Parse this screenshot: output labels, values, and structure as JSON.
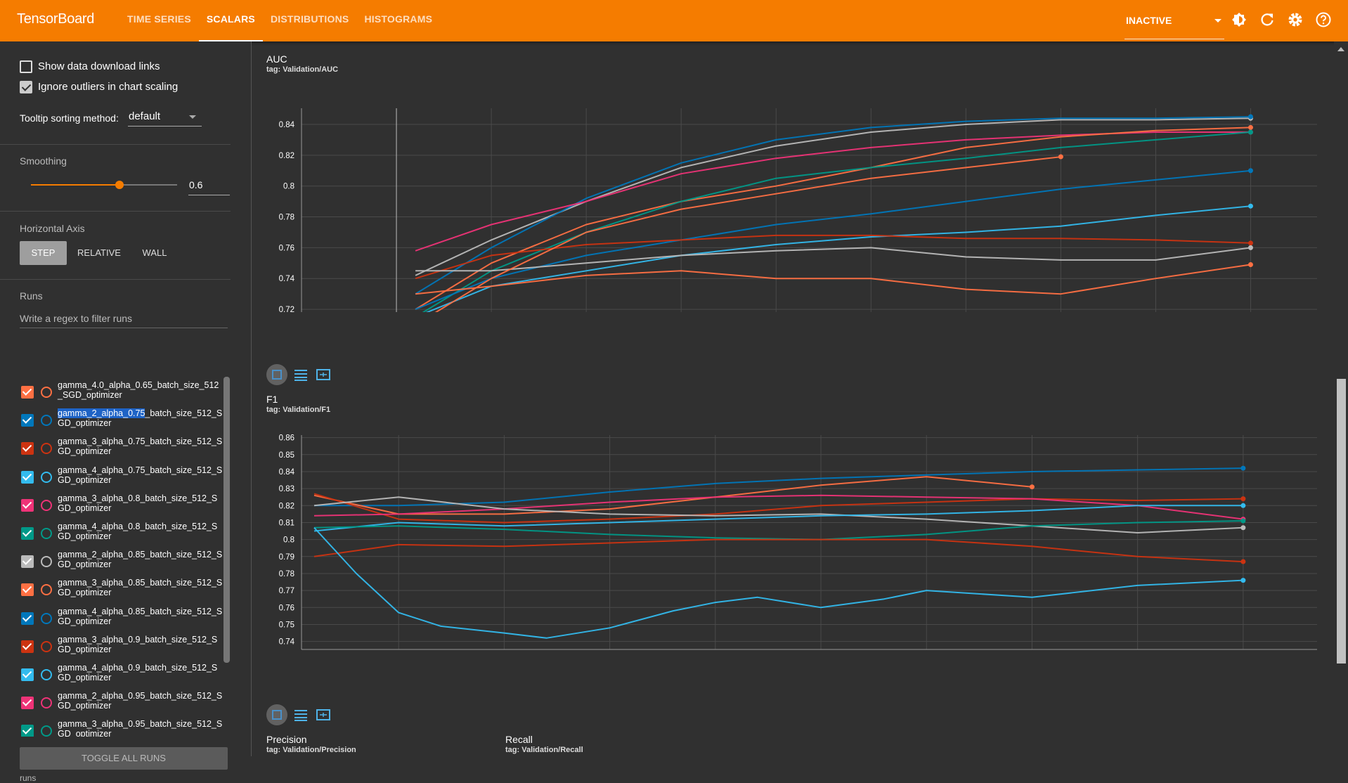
{
  "header": {
    "brand": "TensorBoard",
    "tabs": [
      "TIME SERIES",
      "SCALARS",
      "DISTRIBUTIONS",
      "HISTOGRAMS"
    ],
    "active_tab": "SCALARS",
    "status": "INACTIVE",
    "icons": [
      "brightness-icon",
      "refresh-icon",
      "settings-icon",
      "help-icon"
    ],
    "accent_color": "#f57c00"
  },
  "sidebar": {
    "show_links_label": "Show data download links",
    "show_links_checked": false,
    "ignore_outliers_label": "Ignore outliers in chart scaling",
    "ignore_outliers_checked": true,
    "tooltip_label": "Tooltip sorting method:",
    "tooltip_value": "default",
    "smoothing_label": "Smoothing",
    "smoothing_value": "0.6",
    "horizontal_axis_label": "Horizontal Axis",
    "axis_buttons": [
      "STEP",
      "RELATIVE",
      "WALL"
    ],
    "axis_selected": "STEP",
    "runs_label": "Runs",
    "filter_placeholder": "Write a regex to filter runs",
    "toggle_all_label": "TOGGLE ALL RUNS",
    "runs_footer": "runs",
    "runs": [
      {
        "pre": "",
        "hl": "",
        "post": "gamma_4.0_alpha_0.65_batch_size_512_SGD_optimizer",
        "color": "#ff7043"
      },
      {
        "pre": "",
        "hl": "gamma_2_alpha_0.75",
        "post": "_batch_size_512_SGD_optimizer",
        "color": "#0077bb"
      },
      {
        "pre": "",
        "hl": "",
        "post": "gamma_3_alpha_0.75_batch_size_512_SGD_optimizer",
        "color": "#cc3311"
      },
      {
        "pre": "",
        "hl": "",
        "post": "gamma_4_alpha_0.75_batch_size_512_SGD_optimizer",
        "color": "#33bbee"
      },
      {
        "pre": "",
        "hl": "",
        "post": "gamma_3_alpha_0.8_batch_size_512_SGD_optimizer",
        "color": "#ee3377"
      },
      {
        "pre": "",
        "hl": "",
        "post": "gamma_4_alpha_0.8_batch_size_512_SGD_optimizer",
        "color": "#009988"
      },
      {
        "pre": "",
        "hl": "",
        "post": "gamma_2_alpha_0.85_batch_size_512_SGD_optimizer",
        "color": "#bbbbbb"
      },
      {
        "pre": "",
        "hl": "",
        "post": "gamma_3_alpha_0.85_batch_size_512_SGD_optimizer",
        "color": "#ff7043"
      },
      {
        "pre": "",
        "hl": "",
        "post": "gamma_4_alpha_0.85_batch_size_512_SGD_optimizer",
        "color": "#0077bb"
      },
      {
        "pre": "",
        "hl": "",
        "post": "gamma_3_alpha_0.9_batch_size_512_SGD_optimizer",
        "color": "#cc3311"
      },
      {
        "pre": "",
        "hl": "",
        "post": "gamma_4_alpha_0.9_batch_size_512_SGD_optimizer",
        "color": "#33bbee"
      },
      {
        "pre": "",
        "hl": "",
        "post": "gamma_2_alpha_0.95_batch_size_512_SGD_optimizer",
        "color": "#ee3377"
      },
      {
        "pre": "",
        "hl": "",
        "post": "gamma_3_alpha_0.95_batch_size_512_SGD_optimizer",
        "color": "#009988"
      }
    ]
  },
  "cards": {
    "auc": {
      "title": "AUC",
      "tag": "tag: Validation/AUC"
    },
    "f1": {
      "title": "F1",
      "tag": "tag: Validation/F1"
    },
    "precision": {
      "title": "Precision",
      "tag": "tag: Validation/Precision"
    },
    "recall": {
      "title": "Recall",
      "tag": "tag: Validation/Recall"
    }
  },
  "chart_data": [
    {
      "type": "line",
      "title": "AUC",
      "xlabel": "",
      "ylabel": "",
      "xlim": [
        -50,
        485
      ],
      "ylim": [
        0.71,
        0.8505
      ],
      "xticks": [
        0,
        50,
        100,
        150,
        200,
        250,
        300,
        350,
        400,
        450
      ],
      "yticks": [
        0.72,
        0.74,
        0.76,
        0.78,
        0.8,
        0.82,
        0.84
      ],
      "grid": true,
      "series": [
        {
          "color": "#bbbbbb",
          "x": [
            10,
            50,
            100,
            150,
            200,
            250,
            300,
            350,
            400,
            450
          ],
          "y": [
            0.742,
            0.765,
            0.79,
            0.812,
            0.826,
            0.835,
            0.84,
            0.843,
            0.843,
            0.844
          ]
        },
        {
          "color": "#0077bb",
          "x": [
            10,
            50,
            100,
            150,
            200,
            250,
            300,
            350,
            400,
            450
          ],
          "y": [
            0.73,
            0.76,
            0.792,
            0.815,
            0.83,
            0.838,
            0.842,
            0.844,
            0.844,
            0.845
          ]
        },
        {
          "color": "#ee3377",
          "x": [
            10,
            50,
            100,
            150,
            200,
            250,
            300,
            350,
            400,
            450
          ],
          "y": [
            0.758,
            0.775,
            0.79,
            0.808,
            0.818,
            0.825,
            0.83,
            0.833,
            0.835,
            0.835
          ]
        },
        {
          "color": "#ff7043",
          "x": [
            10,
            50,
            100,
            150,
            200,
            250,
            300,
            350,
            400,
            450
          ],
          "y": [
            0.72,
            0.75,
            0.775,
            0.79,
            0.8,
            0.812,
            0.825,
            0.832,
            0.836,
            0.838
          ]
        },
        {
          "color": "#009988",
          "x": [
            10,
            50,
            100,
            150,
            200,
            250,
            300,
            350,
            400,
            450
          ],
          "y": [
            0.715,
            0.745,
            0.77,
            0.79,
            0.805,
            0.812,
            0.818,
            0.825,
            0.83,
            0.835
          ]
        },
        {
          "color": "#0077bb",
          "x": [
            10,
            50,
            100,
            150,
            200,
            250,
            300,
            350,
            400,
            450
          ],
          "y": [
            0.72,
            0.74,
            0.755,
            0.765,
            0.775,
            0.782,
            0.79,
            0.798,
            0.804,
            0.81
          ]
        },
        {
          "color": "#33bbee",
          "x": [
            10,
            50,
            100,
            150,
            200,
            250,
            300,
            350,
            400,
            450
          ],
          "y": [
            0.715,
            0.735,
            0.745,
            0.755,
            0.762,
            0.767,
            0.77,
            0.774,
            0.781,
            0.787
          ]
        },
        {
          "color": "#cc3311",
          "x": [
            10,
            50,
            100,
            150,
            200,
            250,
            300,
            350,
            400,
            450
          ],
          "y": [
            0.74,
            0.755,
            0.762,
            0.765,
            0.768,
            0.768,
            0.766,
            0.766,
            0.765,
            0.763
          ]
        },
        {
          "color": "#bbbbbb",
          "x": [
            10,
            50,
            100,
            150,
            200,
            250,
            300,
            350,
            400,
            450
          ],
          "y": [
            0.745,
            0.745,
            0.75,
            0.755,
            0.758,
            0.76,
            0.754,
            0.752,
            0.752,
            0.76
          ]
        },
        {
          "color": "#ff7043",
          "x": [
            10,
            50,
            100,
            150,
            200,
            250,
            300,
            350,
            400,
            450
          ],
          "y": [
            0.73,
            0.735,
            0.742,
            0.745,
            0.74,
            0.74,
            0.733,
            0.73,
            0.74,
            0.749
          ]
        },
        {
          "color": "#ff7043",
          "x": [
            10,
            50,
            100,
            150,
            200,
            250,
            300,
            350
          ],
          "y": [
            0.71,
            0.74,
            0.77,
            0.785,
            0.795,
            0.805,
            0.812,
            0.819
          ]
        }
      ]
    },
    {
      "type": "line",
      "title": "F1",
      "xlabel": "",
      "ylabel": "",
      "xlim": [
        4,
        485
      ],
      "ylim": [
        0.7353,
        0.8615
      ],
      "xticks": [
        50,
        100,
        150,
        200,
        250,
        300,
        350,
        400,
        450
      ],
      "yticks": [
        0.74,
        0.75,
        0.76,
        0.77,
        0.78,
        0.79,
        0.8,
        0.81,
        0.82,
        0.83,
        0.84,
        0.85,
        0.86
      ],
      "grid": true,
      "series": [
        {
          "color": "#0077bb",
          "x": [
            10,
            50,
            100,
            150,
            200,
            250,
            300,
            350,
            400,
            450
          ],
          "y": [
            0.82,
            0.82,
            0.822,
            0.828,
            0.833,
            0.836,
            0.838,
            0.84,
            0.841,
            0.842
          ]
        },
        {
          "color": "#ff7043",
          "x": [
            10,
            50,
            100,
            150,
            200,
            250,
            300,
            350
          ],
          "y": [
            0.826,
            0.815,
            0.815,
            0.818,
            0.825,
            0.832,
            0.837,
            0.831
          ]
        },
        {
          "color": "#cc3311",
          "x": [
            10,
            50,
            100,
            150,
            200,
            250,
            300,
            350,
            400,
            450
          ],
          "y": [
            0.827,
            0.812,
            0.81,
            0.812,
            0.815,
            0.82,
            0.822,
            0.824,
            0.823,
            0.824
          ]
        },
        {
          "color": "#ee3377",
          "x": [
            10,
            50,
            100,
            150,
            200,
            250,
            300,
            350,
            400,
            450
          ],
          "y": [
            0.814,
            0.815,
            0.818,
            0.822,
            0.825,
            0.826,
            0.825,
            0.824,
            0.82,
            0.812
          ]
        },
        {
          "color": "#bbbbbb",
          "x": [
            10,
            50,
            100,
            150,
            200,
            250,
            300,
            350,
            400,
            450
          ],
          "y": [
            0.82,
            0.825,
            0.818,
            0.815,
            0.814,
            0.815,
            0.812,
            0.808,
            0.804,
            0.807
          ]
        },
        {
          "color": "#33bbee",
          "x": [
            10,
            50,
            100,
            150,
            200,
            250,
            300,
            350,
            400,
            450
          ],
          "y": [
            0.805,
            0.81,
            0.808,
            0.81,
            0.812,
            0.814,
            0.815,
            0.817,
            0.82,
            0.82
          ]
        },
        {
          "color": "#009988",
          "x": [
            10,
            50,
            100,
            150,
            200,
            250,
            300,
            350,
            400,
            450
          ],
          "y": [
            0.807,
            0.808,
            0.806,
            0.803,
            0.801,
            0.8,
            0.803,
            0.808,
            0.81,
            0.811
          ]
        },
        {
          "color": "#cc3311",
          "x": [
            10,
            50,
            100,
            150,
            200,
            250,
            300,
            350,
            400,
            450
          ],
          "y": [
            0.79,
            0.797,
            0.796,
            0.798,
            0.8,
            0.8,
            0.8,
            0.796,
            0.79,
            0.787
          ]
        },
        {
          "color": "#33bbee",
          "x": [
            10,
            30,
            50,
            70,
            100,
            120,
            150,
            180,
            200,
            220,
            250,
            280,
            300,
            350,
            400,
            450
          ],
          "y": [
            0.807,
            0.78,
            0.757,
            0.749,
            0.745,
            0.742,
            0.748,
            0.758,
            0.763,
            0.766,
            0.76,
            0.765,
            0.77,
            0.766,
            0.773,
            0.776
          ]
        }
      ]
    }
  ]
}
